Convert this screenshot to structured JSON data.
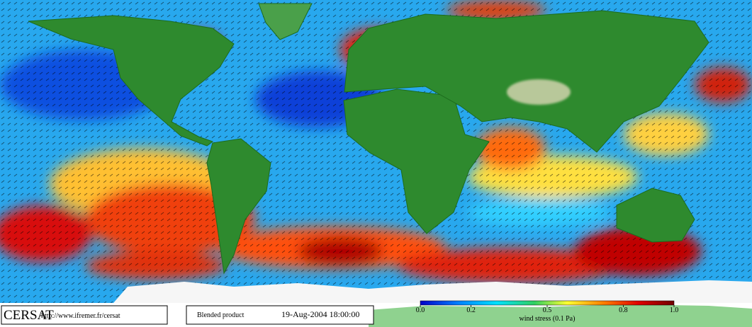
{
  "footer": {
    "logo": "CERSAT",
    "url": "http://www.ifremer.fr/cersat",
    "product": "Blended product",
    "date": "19-Aug-2004 18:00:00"
  },
  "colorbar": {
    "label": "wind stress (0.1 Pa)",
    "lim": [
      0,
      1
    ],
    "ticks": [
      {
        "value": 0,
        "label": "0.0"
      },
      0.2,
      0.5,
      0.8,
      {
        "value": 1,
        "label": "1.0"
      }
    ]
  }
}
